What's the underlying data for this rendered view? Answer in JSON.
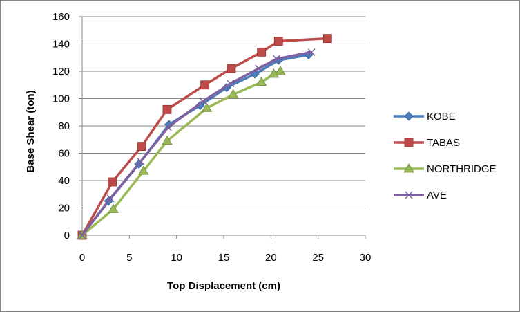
{
  "chart_data": {
    "type": "line",
    "title": "",
    "xlabel": "Top Displacement (cm)",
    "ylabel": "Base Shear (ton)",
    "xlim": [
      0,
      30
    ],
    "ylim": [
      0,
      160
    ],
    "xticks": [
      0,
      5,
      10,
      15,
      20,
      25,
      30
    ],
    "yticks": [
      0,
      20,
      40,
      60,
      80,
      100,
      120,
      140,
      160
    ],
    "grid": "horizontal",
    "legend": "right",
    "series": [
      {
        "name": "KOBE",
        "color": "#4a7ebb",
        "marker": "diamond",
        "x": [
          0,
          2.8,
          6.0,
          9.2,
          12.5,
          15.3,
          18.3,
          20.8,
          24.0
        ],
        "y": [
          0,
          25,
          52,
          81,
          95,
          108,
          118,
          128,
          132
        ]
      },
      {
        "name": "TABAS",
        "color": "#be4b48",
        "marker": "square",
        "x": [
          0,
          3.2,
          6.3,
          9.0,
          13.0,
          15.8,
          19.0,
          20.8,
          26.0
        ],
        "y": [
          0,
          39,
          65,
          92,
          110,
          122,
          134,
          142,
          144
        ]
      },
      {
        "name": "NORTHRIDGE",
        "color": "#98b954",
        "marker": "triangle",
        "x": [
          0,
          3.3,
          6.5,
          9.0,
          13.2,
          16.0,
          19.0,
          20.3,
          21.0
        ],
        "y": [
          0,
          19,
          47,
          69,
          93,
          103,
          112,
          118,
          120
        ]
      },
      {
        "name": "AVE",
        "color": "#7d60a0",
        "marker": "x",
        "x": [
          0,
          3.0,
          6.2,
          9.1,
          12.8,
          15.7,
          18.7,
          20.6,
          24.3
        ],
        "y": [
          0,
          27,
          54,
          79,
          98,
          111,
          122,
          129,
          134
        ]
      }
    ]
  }
}
